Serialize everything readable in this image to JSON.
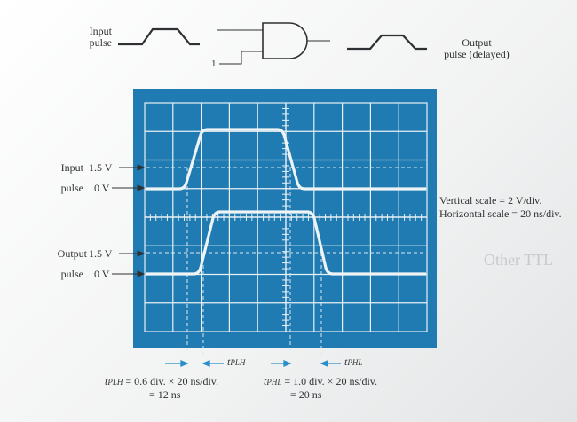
{
  "header": {
    "input_label_line1": "Input",
    "input_label_line2": "pulse",
    "output_label_line1": "Output",
    "output_label_line2": "pulse (delayed)",
    "gate_input_value": "1"
  },
  "scope": {
    "input_level_high": "1.5 V",
    "input_level_low": "0 V",
    "input_row_label": "Input",
    "input_row_label2": "pulse",
    "output_level_high": "1.5 V",
    "output_level_low": "0 V",
    "output_row_label": "Output",
    "output_row_label2": "pulse",
    "vertical_scale": "Vertical scale = 2 V/div.",
    "horizontal_scale": "Horizontal scale = 20 ns/div."
  },
  "timing": {
    "tplh_marker_t": "t",
    "tplh_marker_sub": "PLH",
    "tphl_marker_t": "t",
    "tphl_marker_sub": "PHL",
    "tplh_t": "t",
    "tplh_sub": "PLH",
    "tplh_eq": " = 0.6 div. × 20 ns/div.",
    "tplh_result": "= 12 ns",
    "tphl_t": "t",
    "tphl_sub": "PHL",
    "tphl_eq": " = 1.0 div. × 20 ns/div.",
    "tphl_result": "= 20 ns"
  },
  "background_text": {
    "heading_fragment": "Other TTL"
  },
  "colors": {
    "screen": "#1f7bb1",
    "trace": "#eef3f5",
    "ink": "#2f3033",
    "arrow": "#2a8fc8"
  }
}
